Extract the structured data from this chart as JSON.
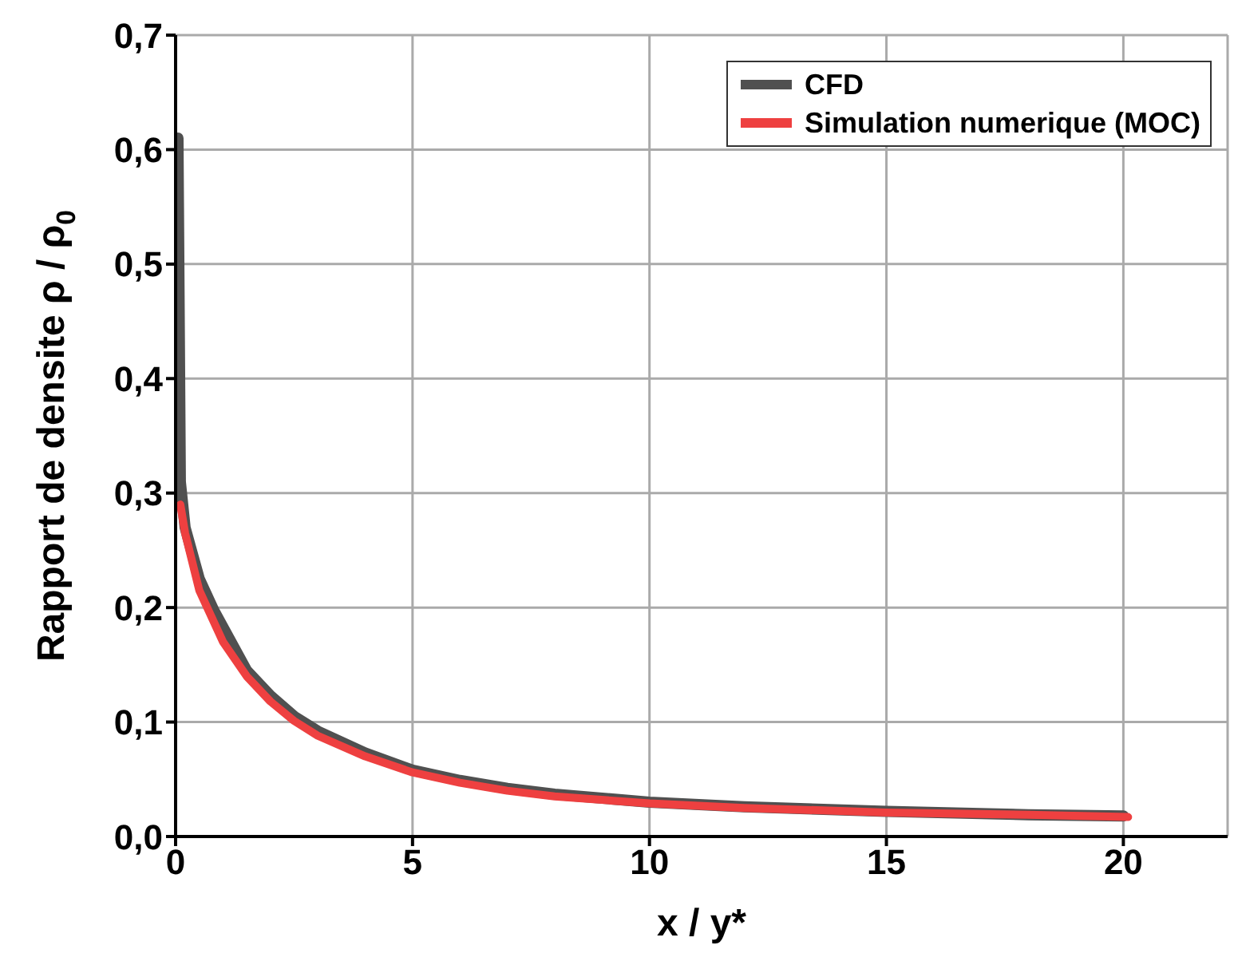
{
  "chart_data": {
    "type": "line",
    "xlabel": "x / y*",
    "ylabel": "Rapport de densite ρ / ρ$_{0}$",
    "xlim": [
      0,
      22.2
    ],
    "xticks": [
      0,
      5,
      10,
      15,
      20
    ],
    "ylim": [
      0,
      0.7
    ],
    "yticks": [
      {
        "value": 0,
        "label": "0,0"
      },
      {
        "value": 0.1,
        "label": "0,1"
      },
      {
        "value": 0.2,
        "label": "0,2"
      },
      {
        "value": 0.3,
        "label": "0,3"
      },
      {
        "value": 0.4,
        "label": "0,4"
      },
      {
        "value": 0.5,
        "label": "0,5"
      },
      {
        "value": 0.6,
        "label": "0,6"
      },
      {
        "value": 0.7,
        "label": "0,7"
      }
    ],
    "grid": true,
    "legend": "top right",
    "marker": "none",
    "line_style": "solid",
    "series": [
      {
        "name": "CFD",
        "color": "#505050",
        "x": [
          0.05,
          0.1,
          0.2,
          0.5,
          0.8,
          1.5,
          2,
          2.5,
          3,
          4,
          5,
          6,
          7,
          8,
          10,
          12,
          15,
          18,
          20
        ],
        "values": [
          0.61,
          0.31,
          0.27,
          0.225,
          0.198,
          0.145,
          0.123,
          0.105,
          0.092,
          0.073,
          0.058,
          0.049,
          0.042,
          0.037,
          0.03,
          0.026,
          0.022,
          0.019,
          0.018
        ]
      },
      {
        "name": "Simulation numerique (MOC)",
        "color": "#ee4040",
        "x": [
          0.1,
          0.2,
          0.5,
          1,
          1.5,
          2,
          2.5,
          3,
          4,
          5,
          6,
          7,
          8,
          10,
          12,
          15,
          18,
          20.1
        ],
        "values": [
          0.29,
          0.265,
          0.215,
          0.17,
          0.14,
          0.118,
          0.101,
          0.088,
          0.07,
          0.056,
          0.047,
          0.04,
          0.035,
          0.029,
          0.025,
          0.021,
          0.019,
          0.017
        ]
      }
    ]
  }
}
